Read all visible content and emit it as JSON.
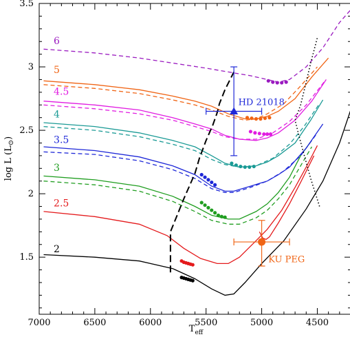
{
  "chart_data": {
    "type": "line",
    "xlabel": "T",
    "xlabel_sub": "eff",
    "ylabel": "log L (L",
    "ylabel_suffix": ")",
    "xlim": [
      7000,
      4200
    ],
    "ylim": [
      1.05,
      3.5
    ],
    "xticks": [
      7000,
      6500,
      6000,
      5500,
      5000,
      4500
    ],
    "yticks": [
      1.5,
      2,
      2.5,
      3,
      3.5
    ],
    "xtick_labels": [
      "7000",
      "6500",
      "6000",
      "5500",
      "5000",
      "4500"
    ],
    "ytick_labels": [
      "1.5",
      "2",
      "2.5",
      "3",
      "3.5"
    ],
    "tracks": [
      {
        "mass": "2",
        "color": "#000000",
        "solid": [
          [
            6960,
            1.52
          ],
          [
            6500,
            1.5
          ],
          [
            6100,
            1.47
          ],
          [
            5800,
            1.41
          ],
          [
            5600,
            1.33
          ],
          [
            5450,
            1.25
          ],
          [
            5330,
            1.2
          ],
          [
            5250,
            1.21
          ],
          [
            5150,
            1.3
          ],
          [
            5000,
            1.45
          ],
          [
            4800,
            1.63
          ],
          [
            4600,
            1.88
          ],
          [
            4450,
            2.1
          ],
          [
            4300,
            2.4
          ],
          [
            4200,
            2.66
          ]
        ],
        "dashed": [],
        "dots": [
          [
            5720,
            1.34
          ],
          [
            5700,
            1.335
          ],
          [
            5680,
            1.33
          ],
          [
            5660,
            1.325
          ],
          [
            5640,
            1.32
          ],
          [
            5620,
            1.315
          ]
        ],
        "label_at": [
          6870,
          1.54
        ]
      },
      {
        "mass": "2.5",
        "color": "#e41a1c",
        "solid": [
          [
            6960,
            1.86
          ],
          [
            6500,
            1.82
          ],
          [
            6100,
            1.76
          ],
          [
            5850,
            1.67
          ],
          [
            5700,
            1.57
          ],
          [
            5550,
            1.49
          ],
          [
            5400,
            1.45
          ],
          [
            5300,
            1.45
          ],
          [
            5200,
            1.5
          ],
          [
            5050,
            1.63
          ],
          [
            4950,
            1.72
          ],
          [
            4820,
            1.87
          ],
          [
            4700,
            2.05
          ],
          [
            4600,
            2.21
          ],
          [
            4500,
            2.38
          ]
        ],
        "dashed": [],
        "branch": [
          [
            5020,
            1.7
          ],
          [
            4990,
            1.65
          ],
          [
            4960,
            1.64
          ],
          [
            4930,
            1.66
          ],
          [
            4850,
            1.77
          ],
          [
            4750,
            1.92
          ],
          [
            4650,
            2.09
          ],
          [
            4530,
            2.3
          ]
        ],
        "dots": [
          [
            5720,
            1.47
          ],
          [
            5700,
            1.46
          ],
          [
            5680,
            1.455
          ],
          [
            5660,
            1.45
          ],
          [
            5640,
            1.445
          ],
          [
            5620,
            1.44
          ]
        ],
        "label_at": [
          6870,
          1.9
        ]
      },
      {
        "mass": "3",
        "color": "#1f9d1f",
        "solid": [
          [
            6960,
            2.14
          ],
          [
            6500,
            2.11
          ],
          [
            6100,
            2.06
          ],
          [
            5800,
            1.98
          ],
          [
            5600,
            1.9
          ],
          [
            5450,
            1.83
          ],
          [
            5300,
            1.8
          ],
          [
            5200,
            1.8
          ],
          [
            5050,
            1.86
          ],
          [
            4950,
            1.92
          ],
          [
            4850,
            2.01
          ],
          [
            4750,
            2.13
          ],
          [
            4650,
            2.3
          ],
          [
            4550,
            2.42
          ]
        ],
        "dashed": [
          [
            6960,
            2.1
          ],
          [
            6500,
            2.07
          ],
          [
            6100,
            2.02
          ],
          [
            5800,
            1.94
          ],
          [
            5600,
            1.86
          ],
          [
            5450,
            1.79
          ],
          [
            5300,
            1.76
          ],
          [
            5200,
            1.76
          ],
          [
            5050,
            1.81
          ],
          [
            4950,
            1.87
          ],
          [
            4850,
            1.96
          ],
          [
            4750,
            2.07
          ],
          [
            4650,
            2.22
          ],
          [
            4550,
            2.37
          ]
        ],
        "dots": [
          [
            5540,
            1.93
          ],
          [
            5510,
            1.91
          ],
          [
            5480,
            1.89
          ],
          [
            5450,
            1.87
          ],
          [
            5420,
            1.85
          ],
          [
            5390,
            1.83
          ],
          [
            5360,
            1.82
          ],
          [
            5330,
            1.815
          ]
        ],
        "label_at": [
          6870,
          2.18
        ]
      },
      {
        "mass": "3.5",
        "color": "#1e28d8",
        "solid": [
          [
            6960,
            2.37
          ],
          [
            6500,
            2.34
          ],
          [
            6100,
            2.29
          ],
          [
            5800,
            2.22
          ],
          [
            5600,
            2.15
          ],
          [
            5450,
            2.06
          ],
          [
            5330,
            2.02
          ],
          [
            5250,
            2.02
          ],
          [
            5100,
            2.06
          ],
          [
            4950,
            2.1
          ],
          [
            4850,
            2.15
          ],
          [
            4750,
            2.21
          ],
          [
            4600,
            2.36
          ],
          [
            4450,
            2.55
          ]
        ],
        "dashed": [
          [
            6960,
            2.33
          ],
          [
            6500,
            2.31
          ],
          [
            6100,
            2.26
          ],
          [
            5800,
            2.19
          ],
          [
            5600,
            2.12
          ],
          [
            5450,
            2.04
          ],
          [
            5330,
            2.01
          ],
          [
            5250,
            2.01
          ],
          [
            5100,
            2.05
          ],
          [
            4950,
            2.1
          ],
          [
            4800,
            2.18
          ],
          [
            4650,
            2.3
          ],
          [
            4500,
            2.48
          ]
        ],
        "dots": [
          [
            5540,
            2.15
          ],
          [
            5510,
            2.13
          ],
          [
            5480,
            2.11
          ],
          [
            5450,
            2.09
          ],
          [
            5420,
            2.07
          ]
        ],
        "label_at": [
          6870,
          2.4
        ]
      },
      {
        "mass": "4",
        "color": "#1a9a95",
        "solid": [
          [
            6960,
            2.56
          ],
          [
            6500,
            2.53
          ],
          [
            6100,
            2.48
          ],
          [
            5800,
            2.42
          ],
          [
            5600,
            2.37
          ],
          [
            5450,
            2.3
          ],
          [
            5330,
            2.24
          ],
          [
            5200,
            2.21
          ],
          [
            5050,
            2.22
          ],
          [
            4950,
            2.25
          ],
          [
            4850,
            2.3
          ],
          [
            4700,
            2.4
          ],
          [
            4560,
            2.58
          ],
          [
            4450,
            2.74
          ]
        ],
        "dashed": [
          [
            6960,
            2.53
          ],
          [
            6500,
            2.5
          ],
          [
            6100,
            2.45
          ],
          [
            5800,
            2.39
          ],
          [
            5600,
            2.34
          ],
          [
            5450,
            2.27
          ],
          [
            5330,
            2.23
          ],
          [
            5200,
            2.21
          ],
          [
            5050,
            2.22
          ],
          [
            4900,
            2.28
          ],
          [
            4750,
            2.39
          ],
          [
            4620,
            2.53
          ],
          [
            4480,
            2.71
          ]
        ],
        "dots": [
          [
            5270,
            2.24
          ],
          [
            5230,
            2.225
          ],
          [
            5190,
            2.215
          ],
          [
            5150,
            2.21
          ],
          [
            5110,
            2.21
          ],
          [
            5070,
            2.215
          ]
        ],
        "label_at": [
          6870,
          2.6
        ]
      },
      {
        "mass": "4.5",
        "color": "#e11ce1",
        "solid": [
          [
            6960,
            2.73
          ],
          [
            6500,
            2.7
          ],
          [
            6100,
            2.66
          ],
          [
            5800,
            2.6
          ],
          [
            5600,
            2.55
          ],
          [
            5450,
            2.51
          ],
          [
            5330,
            2.46
          ],
          [
            5200,
            2.43
          ],
          [
            5050,
            2.42
          ],
          [
            4950,
            2.44
          ],
          [
            4850,
            2.48
          ],
          [
            4700,
            2.58
          ],
          [
            4550,
            2.73
          ],
          [
            4420,
            2.9
          ]
        ],
        "dashed": [
          [
            6960,
            2.7
          ],
          [
            6500,
            2.67
          ],
          [
            6100,
            2.63
          ],
          [
            5800,
            2.58
          ],
          [
            5600,
            2.53
          ],
          [
            5450,
            2.49
          ],
          [
            5330,
            2.45
          ],
          [
            5200,
            2.43
          ],
          [
            5050,
            2.43
          ],
          [
            4900,
            2.48
          ],
          [
            4750,
            2.57
          ],
          [
            4600,
            2.7
          ],
          [
            4440,
            2.88
          ]
        ],
        "dots": [
          [
            5100,
            2.49
          ],
          [
            5060,
            2.48
          ],
          [
            5020,
            2.475
          ],
          [
            4980,
            2.47
          ],
          [
            4950,
            2.47
          ],
          [
            4920,
            2.47
          ]
        ],
        "label_at": [
          6870,
          2.78
        ]
      },
      {
        "mass": "5",
        "color": "#f06414",
        "solid": [
          [
            6960,
            2.89
          ],
          [
            6500,
            2.86
          ],
          [
            6100,
            2.82
          ],
          [
            5800,
            2.77
          ],
          [
            5600,
            2.73
          ],
          [
            5450,
            2.69
          ],
          [
            5300,
            2.63
          ],
          [
            5150,
            2.59
          ],
          [
            5050,
            2.59
          ],
          [
            4950,
            2.61
          ],
          [
            4850,
            2.65
          ],
          [
            4700,
            2.75
          ],
          [
            4550,
            2.92
          ],
          [
            4400,
            3.07
          ]
        ],
        "dashed": [
          [
            6960,
            2.86
          ],
          [
            6500,
            2.83
          ],
          [
            6100,
            2.79
          ],
          [
            5800,
            2.74
          ],
          [
            5600,
            2.7
          ],
          [
            5450,
            2.66
          ],
          [
            5300,
            2.61
          ],
          [
            5150,
            2.58
          ],
          [
            5050,
            2.59
          ],
          [
            4950,
            2.63
          ],
          [
            4800,
            2.71
          ],
          [
            4650,
            2.85
          ],
          [
            4500,
            3.0
          ]
        ],
        "dots": [
          [
            5130,
            2.6
          ],
          [
            5090,
            2.595
          ],
          [
            5050,
            2.59
          ],
          [
            5010,
            2.59
          ],
          [
            4970,
            2.595
          ],
          [
            4930,
            2.6
          ]
        ],
        "label_at": [
          6870,
          2.95
        ]
      },
      {
        "mass": "6",
        "color": "#9a1ac0",
        "solid": [],
        "dashed": [
          [
            6960,
            3.14
          ],
          [
            6500,
            3.11
          ],
          [
            6100,
            3.07
          ],
          [
            5800,
            3.03
          ],
          [
            5500,
            2.99
          ],
          [
            5300,
            2.96
          ],
          [
            5100,
            2.93
          ],
          [
            4950,
            2.9
          ],
          [
            4850,
            2.88
          ],
          [
            4750,
            2.9
          ],
          [
            4600,
            3.0
          ],
          [
            4450,
            3.15
          ],
          [
            4300,
            3.35
          ],
          [
            4200,
            3.45
          ]
        ],
        "dots": [
          [
            4940,
            2.89
          ],
          [
            4900,
            2.88
          ],
          [
            4860,
            2.875
          ],
          [
            4820,
            2.875
          ],
          [
            4780,
            2.88
          ]
        ],
        "label_at": [
          6870,
          3.18
        ]
      }
    ],
    "boundary_dashed": [
      [
        5820,
        1.38
      ],
      [
        5820,
        1.7
      ],
      [
        5700,
        1.96
      ],
      [
        5600,
        2.16
      ],
      [
        5560,
        2.28
      ],
      [
        5500,
        2.42
      ],
      [
        5440,
        2.54
      ],
      [
        5400,
        2.64
      ],
      [
        5380,
        2.71
      ],
      [
        5330,
        2.82
      ],
      [
        5250,
        2.96
      ]
    ],
    "boundary_dotted": [
      [
        4480,
        1.9
      ],
      [
        4560,
        2.12
      ],
      [
        4620,
        2.31
      ],
      [
        4660,
        2.44
      ],
      [
        4700,
        2.58
      ],
      [
        4650,
        2.7
      ],
      [
        4600,
        2.88
      ],
      [
        4560,
        3.03
      ],
      [
        4500,
        3.23
      ]
    ],
    "stars": [
      {
        "name": "HD 21018",
        "color": "#1e28d8",
        "marker": "triangle",
        "teff": 5250,
        "logL": 2.65,
        "teff_err": [
          5500,
          5000
        ],
        "logL_err": [
          2.3,
          3.0
        ],
        "label_at": [
          5210,
          2.7
        ]
      },
      {
        "name": "KU PEG",
        "color": "#f06414",
        "marker": "circle",
        "teff": 5000,
        "logL": 1.62,
        "teff_err": [
          5250,
          4750
        ],
        "logL_err": [
          1.43,
          1.79
        ],
        "label_at": [
          4940,
          1.46
        ]
      }
    ]
  }
}
